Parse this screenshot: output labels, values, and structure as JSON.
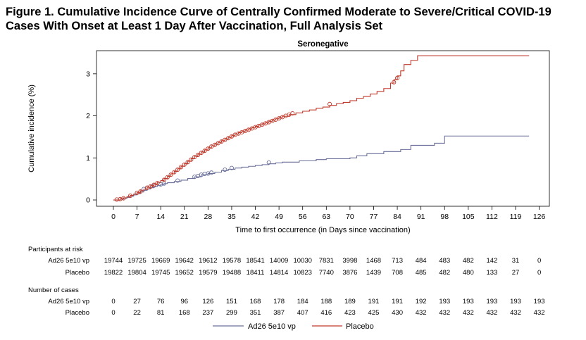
{
  "figure": {
    "title": "Figure 1. Cumulative Incidence Curve of Centrally Confirmed Moderate to Severe/Critical COVID-19 Cases With Onset at Least 1 Day After Vaccination, Full Analysis Set"
  },
  "chart_data": {
    "type": "line",
    "step": true,
    "title": "Seronegative",
    "xlabel": "Time to first occurrence (in Days since vaccination)",
    "ylabel": "Cumulative incidence (%)",
    "xlim": [
      -5,
      129
    ],
    "ylim": [
      -0.15,
      3.55
    ],
    "xticks": [
      0,
      7,
      14,
      21,
      28,
      35,
      42,
      49,
      56,
      63,
      70,
      77,
      84,
      91,
      98,
      105,
      112,
      119,
      126
    ],
    "yticks": [
      0,
      1,
      2,
      3
    ],
    "legend_position": "bottom",
    "series": [
      {
        "name": "Ad26 5e10 vp",
        "color": "#6a6f99",
        "x": [
          0,
          1,
          2,
          3,
          4,
          5,
          6,
          7,
          8,
          9,
          10,
          11,
          12,
          13,
          14,
          15,
          16,
          18,
          20,
          22,
          24,
          26,
          28,
          30,
          32,
          34,
          36,
          38,
          40,
          42,
          44,
          46,
          48,
          50,
          55,
          60,
          63,
          70,
          72,
          75,
          80,
          85,
          88,
          95,
          98,
          123
        ],
        "y": [
          0,
          0,
          0.02,
          0.04,
          0.06,
          0.09,
          0.12,
          0.15,
          0.19,
          0.23,
          0.26,
          0.29,
          0.32,
          0.34,
          0.37,
          0.39,
          0.41,
          0.44,
          0.47,
          0.51,
          0.55,
          0.6,
          0.63,
          0.66,
          0.7,
          0.73,
          0.76,
          0.78,
          0.8,
          0.82,
          0.84,
          0.86,
          0.88,
          0.9,
          0.93,
          0.96,
          0.98,
          1.0,
          1.05,
          1.1,
          1.15,
          1.2,
          1.3,
          1.35,
          1.52,
          1.52
        ],
        "censor_x": [
          9,
          10,
          11,
          12,
          14,
          15,
          19,
          24,
          25,
          26,
          27,
          28,
          29,
          33,
          35,
          46
        ],
        "censor_y": [
          0.26,
          0.29,
          0.32,
          0.34,
          0.37,
          0.39,
          0.46,
          0.55,
          0.57,
          0.6,
          0.62,
          0.63,
          0.65,
          0.72,
          0.76,
          0.89
        ]
      },
      {
        "name": "Placebo",
        "color": "#c0392b",
        "x": [
          0,
          1,
          2,
          3,
          4,
          5,
          6,
          7,
          8,
          9,
          10,
          11,
          12,
          13,
          14,
          15,
          16,
          17,
          18,
          19,
          20,
          21,
          22,
          23,
          24,
          25,
          26,
          27,
          28,
          29,
          30,
          31,
          32,
          33,
          34,
          35,
          36,
          37,
          38,
          39,
          40,
          41,
          42,
          43,
          44,
          45,
          46,
          47,
          48,
          49,
          50,
          52,
          54,
          56,
          58,
          60,
          62,
          64,
          66,
          68,
          70,
          72,
          74,
          76,
          78,
          80,
          82,
          83,
          84,
          85,
          86,
          88,
          90,
          123
        ],
        "y": [
          0,
          0,
          0.03,
          0.05,
          0.08,
          0.11,
          0.14,
          0.18,
          0.22,
          0.26,
          0.3,
          0.34,
          0.38,
          0.42,
          0.46,
          0.51,
          0.56,
          0.62,
          0.68,
          0.74,
          0.8,
          0.86,
          0.92,
          0.98,
          1.04,
          1.09,
          1.14,
          1.19,
          1.24,
          1.29,
          1.33,
          1.37,
          1.41,
          1.45,
          1.49,
          1.53,
          1.57,
          1.6,
          1.63,
          1.66,
          1.69,
          1.72,
          1.75,
          1.78,
          1.81,
          1.84,
          1.87,
          1.9,
          1.93,
          1.96,
          1.99,
          2.03,
          2.07,
          2.11,
          2.14,
          2.18,
          2.21,
          2.25,
          2.29,
          2.32,
          2.36,
          2.42,
          2.46,
          2.52,
          2.58,
          2.65,
          2.78,
          2.86,
          2.95,
          3.07,
          3.22,
          3.32,
          3.43,
          3.43
        ],
        "censor_x": [
          1,
          2,
          3,
          5,
          7,
          8,
          10,
          11,
          12,
          13,
          15,
          16,
          17,
          18,
          19,
          20,
          21,
          22,
          23,
          24,
          25,
          26,
          27,
          28,
          29,
          30,
          31,
          32,
          33,
          34,
          35,
          36,
          37,
          38,
          39,
          40,
          41,
          42,
          43,
          44,
          45,
          46,
          47,
          48,
          49,
          50,
          51,
          52,
          53,
          64,
          83,
          84
        ],
        "censor_y": [
          0.01,
          0.02,
          0.04,
          0.1,
          0.17,
          0.2,
          0.29,
          0.32,
          0.36,
          0.4,
          0.48,
          0.54,
          0.6,
          0.66,
          0.72,
          0.78,
          0.84,
          0.9,
          0.96,
          1.02,
          1.07,
          1.12,
          1.17,
          1.22,
          1.27,
          1.31,
          1.35,
          1.39,
          1.43,
          1.47,
          1.51,
          1.55,
          1.58,
          1.61,
          1.64,
          1.67,
          1.7,
          1.73,
          1.76,
          1.79,
          1.82,
          1.85,
          1.88,
          1.91,
          1.94,
          1.97,
          2.0,
          2.03,
          2.06,
          2.28,
          2.8,
          2.9
        ]
      }
    ]
  },
  "risk_table": {
    "title": "Participants at risk",
    "rows": [
      {
        "label": "Ad26 5e10 vp",
        "values": [
          "19744",
          "19725",
          "19669",
          "19642",
          "19612",
          "19578",
          "18541",
          "14009",
          "10030",
          "7831",
          "3998",
          "1468",
          "713",
          "484",
          "483",
          "482",
          "142",
          "31",
          "0"
        ]
      },
      {
        "label": "Placebo",
        "values": [
          "19822",
          "19804",
          "19745",
          "19652",
          "19579",
          "19488",
          "18411",
          "14814",
          "10823",
          "7740",
          "3876",
          "1439",
          "708",
          "485",
          "482",
          "480",
          "133",
          "27",
          "0"
        ]
      }
    ]
  },
  "cases_table": {
    "title": "Number of cases",
    "rows": [
      {
        "label": "Ad26 5e10 vp",
        "values": [
          "0",
          "27",
          "76",
          "96",
          "126",
          "151",
          "168",
          "178",
          "184",
          "188",
          "189",
          "191",
          "191",
          "192",
          "193",
          "193",
          "193",
          "193",
          "193"
        ]
      },
      {
        "label": "Placebo",
        "values": [
          "0",
          "22",
          "81",
          "168",
          "237",
          "299",
          "351",
          "387",
          "407",
          "416",
          "423",
          "425",
          "430",
          "432",
          "432",
          "432",
          "432",
          "432",
          "432"
        ]
      }
    ]
  }
}
